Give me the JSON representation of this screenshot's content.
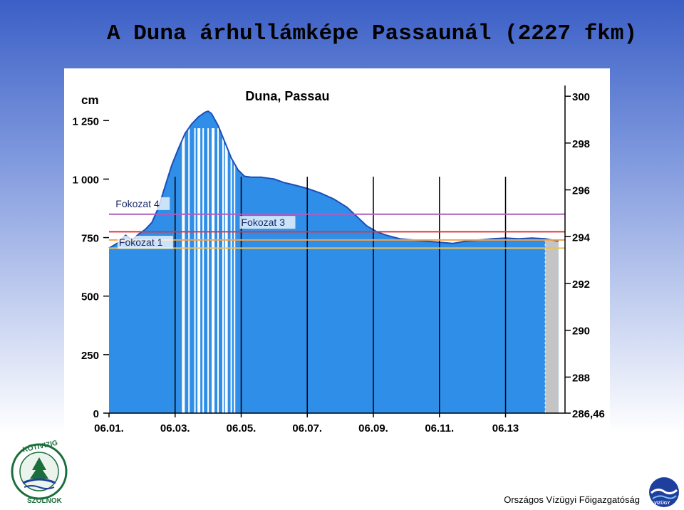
{
  "slide": {
    "title": "A Duna árhullámképe Passaunál (2227 fkm)",
    "org_name": "Országos Vízügyi Főigazgatóság",
    "left_logo_text_top": "KÖTIVIZIG",
    "left_logo_text_bottom": "SZOLNOK",
    "right_logo_text": "VIZÜGY",
    "colors": {
      "slide_top": "#3b5fc6",
      "water_fill": "#2f8ee8",
      "water_edge": "#1c4fb8",
      "forecast_fill": "#c4c4c4"
    }
  },
  "chart_data": {
    "type": "area",
    "title": "Duna, Passau",
    "ylabel": "cm",
    "ylim": [
      0,
      1400
    ],
    "yticks": [
      0,
      250,
      500,
      750,
      1000,
      1250
    ],
    "ytick_labels": [
      "0",
      "250",
      "500",
      "750",
      "1 000",
      "1 250"
    ],
    "y2ticks": [
      286.46,
      288,
      290,
      292,
      294,
      296,
      298,
      300
    ],
    "y2tick_labels": [
      "286,46",
      "288",
      "290",
      "292",
      "294",
      "296",
      "298",
      "300"
    ],
    "xlim": [
      0,
      13.8
    ],
    "x_ticks": [
      0,
      2,
      4,
      6,
      8,
      10,
      12
    ],
    "x_tick_labels": [
      "06.01.",
      "06.03.",
      "06.05.",
      "06.07.",
      "06.09.",
      "06.11.",
      "06.13"
    ],
    "forecast_start": 13.2,
    "series": [
      {
        "values": [
          [
            0,
            705
          ],
          [
            0.3,
            730
          ],
          [
            0.5,
            760
          ],
          [
            0.7,
            740
          ],
          [
            0.9,
            765
          ],
          [
            1.1,
            785
          ],
          [
            1.3,
            815
          ],
          [
            1.5,
            880
          ],
          [
            1.7,
            970
          ],
          [
            1.9,
            1060
          ],
          [
            2.1,
            1130
          ],
          [
            2.3,
            1195
          ],
          [
            2.5,
            1235
          ],
          [
            2.7,
            1265
          ],
          [
            2.9,
            1285
          ],
          [
            3.0,
            1290
          ],
          [
            3.1,
            1280
          ],
          [
            3.3,
            1230
          ],
          [
            3.5,
            1160
          ],
          [
            3.7,
            1090
          ],
          [
            3.9,
            1040
          ],
          [
            4.1,
            1012
          ],
          [
            4.3,
            1008
          ],
          [
            4.6,
            1008
          ],
          [
            5.0,
            1000
          ],
          [
            5.3,
            985
          ],
          [
            5.6,
            975
          ],
          [
            6.0,
            960
          ],
          [
            6.4,
            940
          ],
          [
            6.8,
            915
          ],
          [
            7.2,
            880
          ],
          [
            7.5,
            840
          ],
          [
            7.8,
            800
          ],
          [
            8.1,
            775
          ],
          [
            8.4,
            760
          ],
          [
            8.8,
            745
          ],
          [
            9.2,
            740
          ],
          [
            9.6,
            735
          ],
          [
            10.0,
            730
          ],
          [
            10.4,
            725
          ],
          [
            10.8,
            735
          ],
          [
            11.2,
            740
          ],
          [
            11.6,
            745
          ],
          [
            12.0,
            748
          ],
          [
            12.4,
            745
          ],
          [
            12.8,
            748
          ],
          [
            13.2,
            745
          ],
          [
            13.6,
            735
          ]
        ]
      }
    ],
    "thresholds": [
      {
        "name": "Fokozat 4",
        "value": 850,
        "color": "#b05cc0"
      },
      {
        "name": "Fokozat 3",
        "value": 775,
        "color": "#e0343a"
      },
      {
        "name": "",
        "value": 740,
        "color": "#f4a24a"
      },
      {
        "name": "Fokozat 1",
        "value": 705,
        "color": "#e8c25a"
      }
    ],
    "threshold_labels": [
      {
        "text": "Fokozat 4",
        "x": 0.2,
        "y": 880
      },
      {
        "text": "Fokozat 3",
        "x": 4.0,
        "y": 800
      },
      {
        "text": "Fokozat 1",
        "x": 0.3,
        "y": 715
      }
    ],
    "white_gaps": [
      2.25,
      2.42,
      2.6,
      2.72,
      2.85,
      3.0,
      3.15,
      3.3,
      3.45,
      3.55,
      3.7,
      3.8
    ],
    "grid": "vertical black lines at each day mark"
  }
}
